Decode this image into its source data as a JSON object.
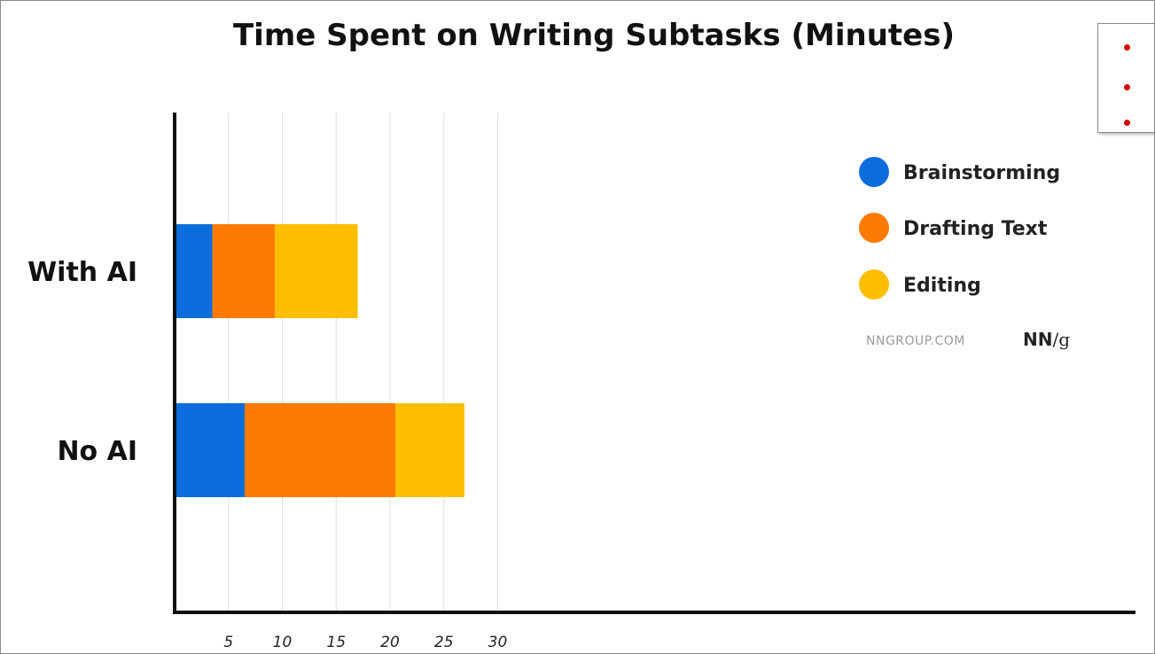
{
  "chart_data": {
    "type": "bar",
    "orientation": "horizontal",
    "stacked": true,
    "title": "Time Spent on Writing Subtasks (Minutes)",
    "xlabel": "",
    "ylabel": "",
    "categories": [
      "With AI",
      "No AI"
    ],
    "series": [
      {
        "name": "Brainstorming",
        "color": "#0A6DDB",
        "values": [
          3.5,
          6.5
        ]
      },
      {
        "name": "Drafting Text",
        "color": "#FF7A00",
        "values": [
          5.8,
          14.0
        ]
      },
      {
        "name": "Editing",
        "color": "#FFBE00",
        "values": [
          7.7,
          6.4
        ]
      }
    ],
    "x_ticks": [
      "5",
      "10",
      "15",
      "20",
      "25",
      "30"
    ],
    "xlim": [
      0,
      30
    ],
    "grid": true,
    "legend_position": "top-right",
    "source": "NNGROUP.COM",
    "logo": "NN/g"
  },
  "note": {
    "bullet_count": 3,
    "bullet_color": "#D40000"
  }
}
